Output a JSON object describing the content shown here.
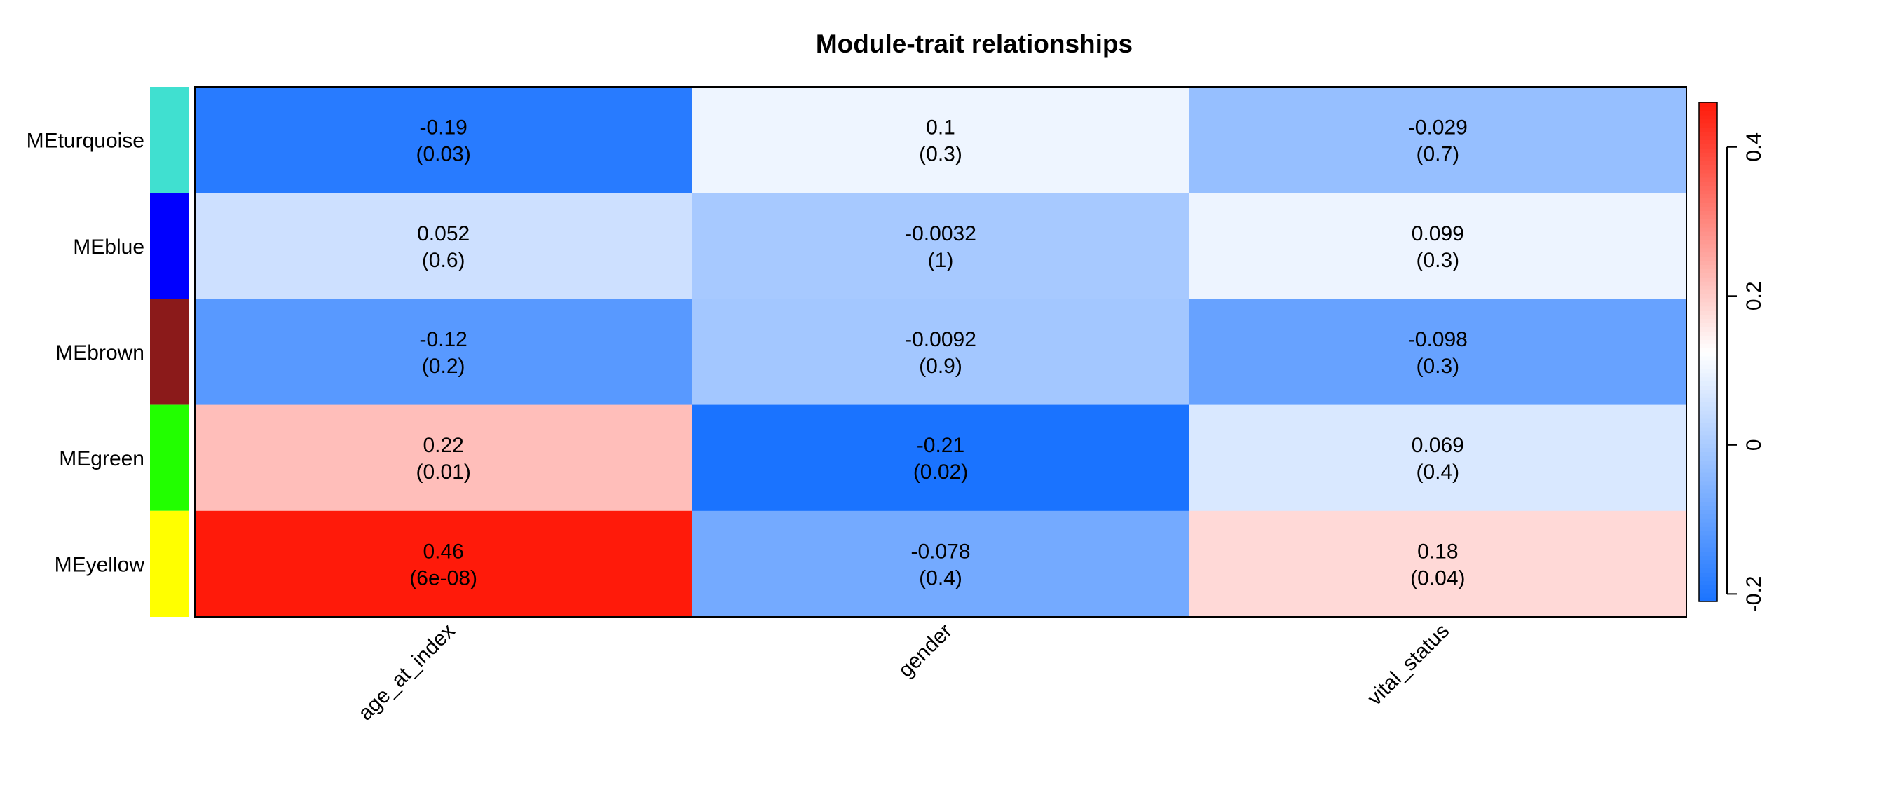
{
  "chart_data": {
    "type": "heatmap",
    "title": "Module-trait relationships",
    "rows": [
      "MEturquoise",
      "MEblue",
      "MEbrown",
      "MEgreen",
      "MEyellow"
    ],
    "row_colors": [
      "#40E0D0",
      "#0000FF",
      "#8B1A1A",
      "#22FF00",
      "#FFFF00"
    ],
    "columns": [
      "age_at_index",
      "gender",
      "vital_status"
    ],
    "values": [
      [
        -0.19,
        0.1,
        -0.029
      ],
      [
        0.052,
        -0.0032,
        0.099
      ],
      [
        -0.12,
        -0.0092,
        -0.098
      ],
      [
        0.22,
        -0.21,
        0.069
      ],
      [
        0.46,
        -0.078,
        0.18
      ]
    ],
    "value_labels": [
      [
        "-0.19",
        "0.1",
        "-0.029"
      ],
      [
        "0.052",
        "-0.0032",
        "0.099"
      ],
      [
        "-0.12",
        "-0.0092",
        "-0.098"
      ],
      [
        "0.22",
        "-0.21",
        "0.069"
      ],
      [
        "0.46",
        "-0.078",
        "0.18"
      ]
    ],
    "pvalue_labels": [
      [
        "(0.03)",
        "(0.3)",
        "(0.7)"
      ],
      [
        "(0.6)",
        "(1)",
        "(0.3)"
      ],
      [
        "(0.2)",
        "(0.9)",
        "(0.3)"
      ],
      [
        "(0.01)",
        "(0.02)",
        "(0.4)"
      ],
      [
        "(6e-08)",
        "(0.4)",
        "(0.04)"
      ]
    ],
    "colorbar": {
      "range": [
        -0.21,
        0.46
      ],
      "ticks": [
        -0.2,
        0,
        0.2,
        0.4
      ],
      "tick_labels": [
        "-0.2",
        "0",
        "0.2",
        "0.4"
      ],
      "low_color": "#1A73FF",
      "mid_color": "#FFFFFF",
      "high_color": "#FF1A0A",
      "mid_value": 0.125
    },
    "legend_placement": "right",
    "grid": false
  }
}
